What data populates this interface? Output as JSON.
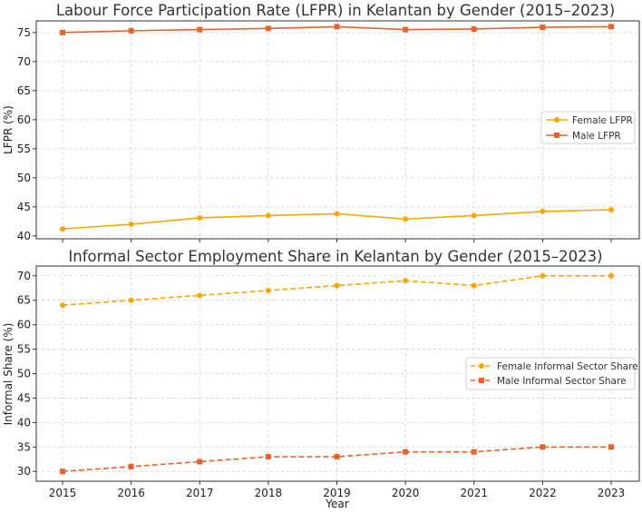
{
  "chart_data": [
    {
      "type": "line",
      "title": "Labour Force Participation Rate (LFPR) in Kelantan by Gender (2015–2023)",
      "xlabel": "",
      "ylabel": "LFPR (%)",
      "x": [
        "2015",
        "2016",
        "2017",
        "2018",
        "2019",
        "2020",
        "2021",
        "2022",
        "2023"
      ],
      "ylim": [
        39.5,
        77
      ],
      "yticks": [
        "40",
        "45",
        "50",
        "55",
        "60",
        "65",
        "70",
        "75"
      ],
      "grid": true,
      "legend_position": "center-right",
      "series": [
        {
          "name": "Female LFPR",
          "values": [
            41.2,
            42.0,
            43.1,
            43.5,
            43.8,
            42.9,
            43.5,
            44.2,
            44.5
          ],
          "color": "#f7a800",
          "line_style": "solid",
          "marker": "circle"
        },
        {
          "name": "Male LFPR",
          "values": [
            75.0,
            75.3,
            75.5,
            75.7,
            76.0,
            75.5,
            75.6,
            75.9,
            76.0
          ],
          "color": "#e8632b",
          "line_style": "solid",
          "marker": "square"
        }
      ]
    },
    {
      "type": "line",
      "title": "Informal Sector Employment Share in Kelantan by Gender (2015–2023)",
      "xlabel": "Year",
      "ylabel": "Informal Share (%)",
      "x": [
        "2015",
        "2016",
        "2017",
        "2018",
        "2019",
        "2020",
        "2021",
        "2022",
        "2023"
      ],
      "xticks": [
        "2015",
        "2016",
        "2017",
        "2018",
        "2019",
        "2020",
        "2021",
        "2022",
        "2023"
      ],
      "ylim": [
        28,
        72
      ],
      "yticks": [
        "30",
        "35",
        "40",
        "45",
        "50",
        "55",
        "60",
        "65",
        "70"
      ],
      "grid": true,
      "legend_position": "center-right",
      "series": [
        {
          "name": "Female Informal Sector Share",
          "values": [
            64,
            65,
            66,
            67,
            68,
            69,
            68,
            70,
            70
          ],
          "color": "#f7a800",
          "line_style": "dashed",
          "marker": "circle"
        },
        {
          "name": "Male Informal Sector Share",
          "values": [
            30,
            31,
            32,
            33,
            33,
            34,
            34,
            35,
            35
          ],
          "color": "#e8632b",
          "line_style": "dashed",
          "marker": "square"
        }
      ]
    }
  ]
}
